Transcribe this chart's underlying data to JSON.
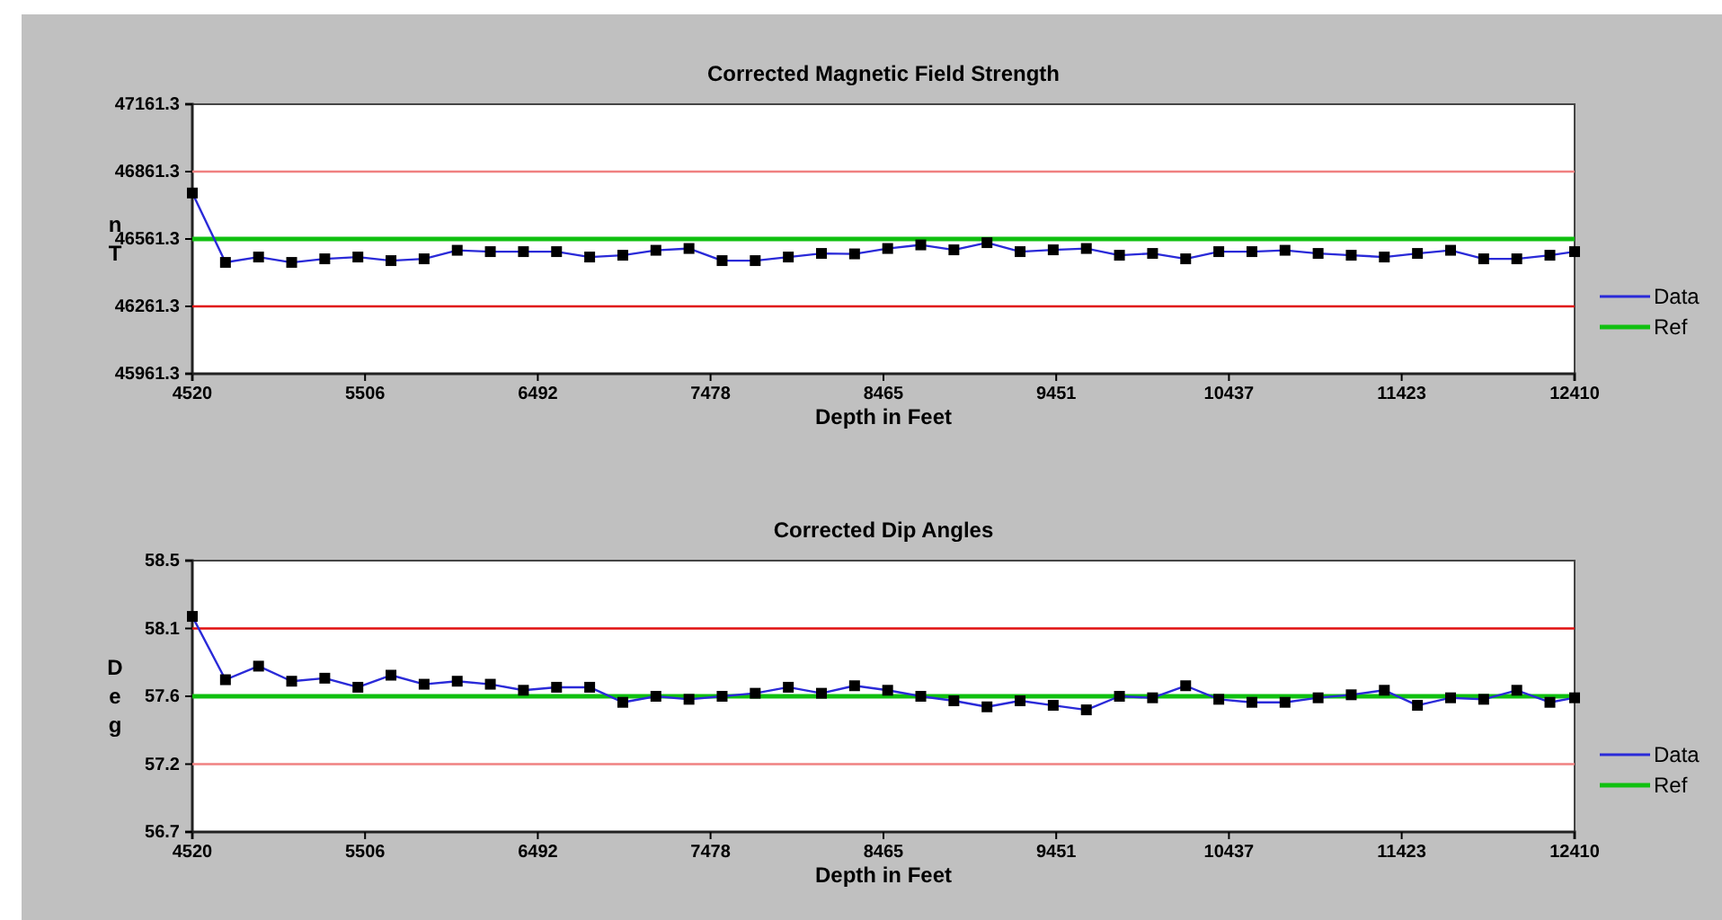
{
  "chart_data": [
    {
      "type": "line",
      "title": "Corrected Magnetic Field Strength",
      "xlabel": "Depth in Feet",
      "ylabel": "nT",
      "xlim": [
        4520,
        12410
      ],
      "xticks": [
        4520,
        5506,
        6492,
        7478,
        8465,
        9451,
        10437,
        11423,
        12410
      ],
      "ylim": [
        45961.3,
        47161.3
      ],
      "yticks": [
        45961.3,
        46261.3,
        46561.3,
        46861.3,
        47161.3
      ],
      "grid": false,
      "legend": "right",
      "marker": "square",
      "line_style": "solid",
      "ref_lines": [
        {
          "axis": "y",
          "value": 46861.3,
          "color": "#f08080"
        },
        {
          "axis": "y",
          "value": 46261.3,
          "color": "#e01010"
        }
      ],
      "series": [
        {
          "name": "Data",
          "color": "#2a2ad8",
          "x": [
            4520,
            4709,
            4898,
            5087,
            5276,
            5465,
            5654,
            5843,
            6032,
            6221,
            6410,
            6599,
            6788,
            6977,
            7166,
            7355,
            7544,
            7733,
            7922,
            8111,
            8300,
            8489,
            8678,
            8867,
            9056,
            9245,
            9434,
            9623,
            9812,
            10001,
            10190,
            10379,
            10568,
            10757,
            10946,
            11135,
            11324,
            11513,
            11702,
            11891,
            12080,
            12269,
            12410
          ],
          "values": [
            46766,
            46457,
            46481,
            46457,
            46473,
            46481,
            46465,
            46473,
            46511,
            46505,
            46505,
            46505,
            46481,
            46489,
            46511,
            46519,
            46465,
            46465,
            46481,
            46497,
            46495,
            46519,
            46535,
            46513,
            46545,
            46505,
            46513,
            46519,
            46489,
            46497,
            46473,
            46505,
            46505,
            46511,
            46497,
            46489,
            46481,
            46497,
            46511,
            46473,
            46473,
            46489,
            46505
          ]
        },
        {
          "name": "Ref",
          "color": "#10c010",
          "marker": "none",
          "x": [
            4520,
            12410
          ],
          "values": [
            46561.3,
            46561.3
          ]
        }
      ]
    },
    {
      "type": "line",
      "title": "Corrected Dip Angles",
      "xlabel": "Depth in Feet",
      "ylabel": "Deg",
      "xlim": [
        4520,
        12410
      ],
      "xticks": [
        4520,
        5506,
        6492,
        7478,
        8465,
        9451,
        10437,
        11423,
        12410
      ],
      "ylim": [
        56.7,
        58.5
      ],
      "yticks": [
        56.7,
        {
          "value": 57.15,
          "label": "57.2"
        },
        57.6,
        {
          "value": 58.05,
          "label": "58.1"
        },
        58.5
      ],
      "grid": false,
      "legend": "right",
      "marker": "square",
      "line_style": "solid",
      "ref_lines": [
        {
          "axis": "y",
          "value": 58.05,
          "color": "#e01010"
        },
        {
          "axis": "y",
          "value": 57.15,
          "color": "#f08080"
        }
      ],
      "series": [
        {
          "name": "Data",
          "color": "#2a2ad8",
          "x": [
            4520,
            4709,
            4898,
            5087,
            5276,
            5465,
            5654,
            5843,
            6032,
            6221,
            6410,
            6599,
            6788,
            6977,
            7166,
            7355,
            7544,
            7733,
            7922,
            8111,
            8300,
            8489,
            8678,
            8867,
            9056,
            9245,
            9434,
            9623,
            9812,
            10001,
            10190,
            10379,
            10568,
            10757,
            10946,
            11135,
            11324,
            11513,
            11702,
            11891,
            12080,
            12269,
            12410
          ],
          "values": [
            58.13,
            57.71,
            57.8,
            57.7,
            57.72,
            57.66,
            57.74,
            57.68,
            57.7,
            57.68,
            57.64,
            57.66,
            57.66,
            57.56,
            57.6,
            57.58,
            57.6,
            57.62,
            57.66,
            57.62,
            57.67,
            57.64,
            57.6,
            57.57,
            57.53,
            57.57,
            57.54,
            57.51,
            57.6,
            57.59,
            57.67,
            57.58,
            57.56,
            57.56,
            57.59,
            57.61,
            57.64,
            57.54,
            57.59,
            57.58,
            57.64,
            57.56,
            57.59
          ]
        },
        {
          "name": "Ref",
          "color": "#10c010",
          "marker": "none",
          "x": [
            4520,
            12410
          ],
          "values": [
            57.6,
            57.6
          ]
        }
      ]
    }
  ]
}
